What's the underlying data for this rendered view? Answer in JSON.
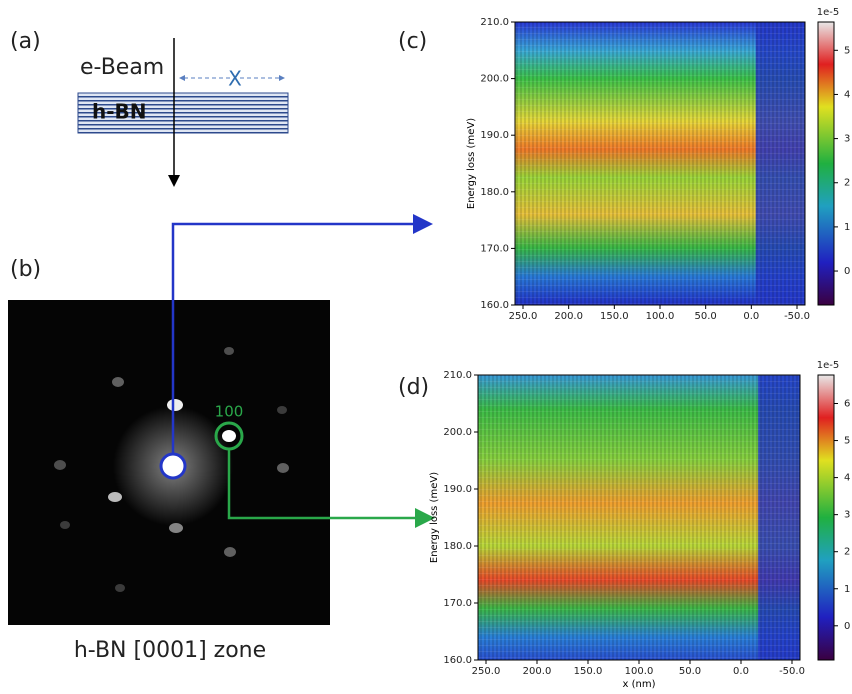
{
  "panels": {
    "a": {
      "label": "(a)",
      "beam": "e-Beam",
      "material": "h-BN",
      "distance": "X"
    },
    "b": {
      "label": "(b)",
      "spot": "100",
      "caption": "h-BN [0001] zone"
    },
    "c": {
      "label": "(c)",
      "y_axis_label": "Energy loss (meV)",
      "y_ticks": [
        "210.0",
        "200.0",
        "190.0",
        "180.0",
        "170.0",
        "160.0"
      ],
      "x_ticks": [
        "250.0",
        "200.0",
        "150.0",
        "100.0",
        "50.0",
        "0.0",
        "-50.0"
      ],
      "colorbar_scale": "1e-5",
      "colorbar_ticks": [
        "5",
        "4",
        "3",
        "2",
        "1",
        "0"
      ]
    },
    "d": {
      "label": "(d)",
      "y_axis_label": "Energy loss (meV)",
      "x_axis_label": "x (nm)",
      "y_ticks": [
        "210.0",
        "200.0",
        "190.0",
        "180.0",
        "170.0",
        "160.0"
      ],
      "x_ticks": [
        "250.0",
        "200.0",
        "150.0",
        "100.0",
        "50.0",
        "0.0",
        "-50.0"
      ],
      "colorbar_scale": "1e-5",
      "colorbar_ticks": [
        "6",
        "5",
        "4",
        "3",
        "2",
        "1",
        "0"
      ]
    }
  }
}
